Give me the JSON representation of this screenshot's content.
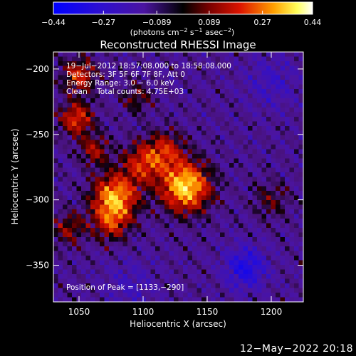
{
  "chart_data": {
    "type": "heatmap",
    "title": "Reconstructed RHESSI Image",
    "xlabel": "Heliocentric X (arcsec)",
    "ylabel": "Heliocentric Y (arcsec)",
    "xlim": [
      1030,
      1225
    ],
    "ylim": [
      -378,
      -187
    ],
    "x_ticks": [
      1050,
      1100,
      1150,
      1200
    ],
    "x_tick_labels": [
      "1050",
      "1100",
      "1150",
      "1200"
    ],
    "y_ticks": [
      -200,
      -250,
      -300,
      -350
    ],
    "y_tick_labels": [
      "−200",
      "−250",
      "−300",
      "−350"
    ],
    "colorbar": {
      "min": -0.44,
      "max": 0.44,
      "ticks": [
        -0.44,
        -0.27,
        -0.089,
        0.089,
        0.27,
        0.44
      ],
      "tick_labels": [
        "−0.44",
        "−0.27",
        "−0.089",
        "0.089",
        "0.27",
        "0.44"
      ],
      "unit_label_parts": [
        "(photons cm",
        "−2",
        " s",
        "−1",
        " asec",
        "−2",
        ")"
      ]
    },
    "annotations": [
      "19−Jul−2012 18:57:08.000 to 18:58:08.000",
      "Detectors: 3F 5F 6F 7F 8F, Att 0",
      "Energy Range: 3.0 − 6.0 keV",
      "Clean    Total counts: 4.75E+03"
    ],
    "peak_label": "Position of Peak = [1133,−290]",
    "peak": [
      1133,
      -290
    ],
    "sources": [
      {
        "x": 1133,
        "y": -290,
        "amp": 0.44,
        "sigma": 13
      },
      {
        "x": 1078,
        "y": -298,
        "amp": 0.38,
        "sigma": 12
      },
      {
        "x": 1100,
        "y": -272,
        "amp": 0.24,
        "sigma": 11
      },
      {
        "x": 1118,
        "y": -262,
        "amp": 0.2,
        "sigma": 10
      },
      {
        "x": 1048,
        "y": -238,
        "amp": 0.26,
        "sigma": 9
      },
      {
        "x": 1050,
        "y": -205,
        "amp": 0.24,
        "sigma": 9
      },
      {
        "x": 1062,
        "y": -262,
        "amp": 0.18,
        "sigma": 8
      },
      {
        "x": 1095,
        "y": -222,
        "amp": 0.13,
        "sigma": 8
      },
      {
        "x": 1042,
        "y": -322,
        "amp": 0.16,
        "sigma": 9
      },
      {
        "x": 1075,
        "y": -318,
        "amp": 0.2,
        "sigma": 10
      },
      {
        "x": 1200,
        "y": -300,
        "amp": 0.11,
        "sigma": 10
      },
      {
        "x": 1180,
        "y": -352,
        "amp": -0.22,
        "sigma": 11
      },
      {
        "x": 1200,
        "y": -210,
        "amp": -0.1,
        "sigma": 14
      },
      {
        "x": 1090,
        "y": -365,
        "amp": -0.08,
        "sigma": 14
      }
    ]
  },
  "footer": {
    "timestamp": "12−May−2022 20:18"
  }
}
